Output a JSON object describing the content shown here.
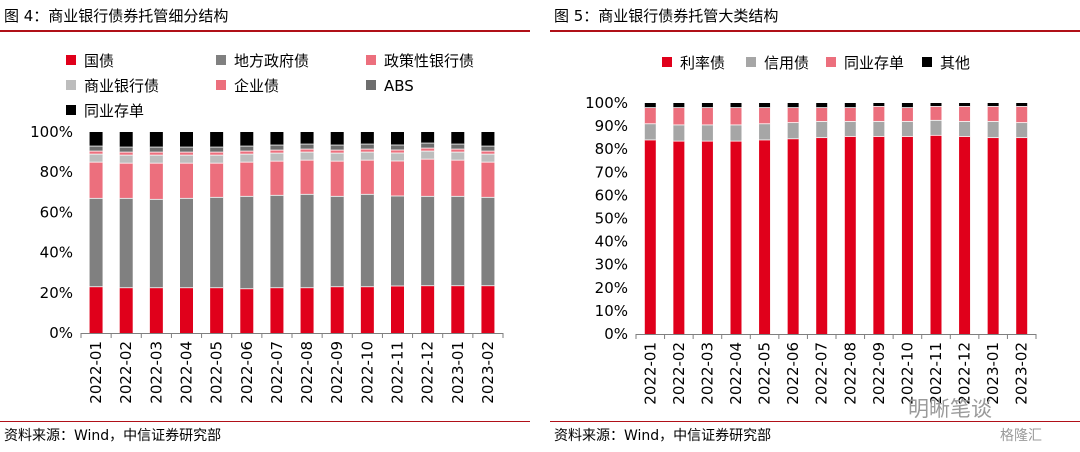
{
  "charts": [
    {
      "id": "left",
      "title": "图 4：商业银行债券托管细分结构",
      "source": "资料来源：Wind，中信证券研究部"
    },
    {
      "id": "right",
      "title": "图 5：商业银行债券托管大类结构",
      "source": "资料来源：Wind，中信证券研究部"
    }
  ],
  "watermark": "明晰笔谈",
  "watermark_small": "格隆汇",
  "chart_data": [
    {
      "type": "bar",
      "stacked": true,
      "categories": [
        "2022-01",
        "2022-02",
        "2022-03",
        "2022-04",
        "2022-05",
        "2022-06",
        "2022-07",
        "2022-08",
        "2022-09",
        "2022-10",
        "2022-11",
        "2022-12",
        "2023-01",
        "2023-02"
      ],
      "yticks": [
        "0%",
        "20%",
        "40%",
        "60%",
        "80%",
        "100%"
      ],
      "ylim": [
        0,
        100
      ],
      "legend_position": "top-left",
      "series": [
        {
          "name": "国债",
          "color": "#e0001b",
          "values": [
            23,
            22.5,
            22.5,
            22.5,
            22.5,
            22,
            22.5,
            22.5,
            23,
            23,
            23.5,
            23.5,
            23.5,
            23.5
          ]
        },
        {
          "name": "地方政府债",
          "color": "#808080",
          "values": [
            44,
            44.5,
            44,
            44.5,
            45,
            46,
            46,
            46.5,
            45,
            46,
            45,
            44.5,
            44.5,
            44
          ]
        },
        {
          "name": "政策性银行债",
          "color": "#ec6f7d",
          "values": [
            18,
            17.5,
            18,
            17.5,
            17,
            17,
            17,
            17,
            17.5,
            17,
            17.5,
            18.5,
            18,
            17.5
          ]
        },
        {
          "name": "商业银行债",
          "color": "#bdbdbd",
          "values": [
            4,
            4,
            4,
            4,
            4,
            4,
            4,
            4,
            4,
            4,
            4,
            4,
            4,
            4
          ]
        },
        {
          "name": "企业债",
          "color": "#ec6f7d",
          "values": [
            1.5,
            1.5,
            1.5,
            1.5,
            1.5,
            1.5,
            1.5,
            1.5,
            1.5,
            1.5,
            1.5,
            1.5,
            1.5,
            1.5
          ]
        },
        {
          "name": "ABS",
          "color": "#6e6e6e",
          "values": [
            2.5,
            2.5,
            2.5,
            2.5,
            2.5,
            2.5,
            2.5,
            2.5,
            2.5,
            2.5,
            2.5,
            2.5,
            2.5,
            2.5
          ]
        },
        {
          "name": "同业存单",
          "color": "#000000",
          "values": [
            7,
            7.5,
            7.5,
            7.5,
            7.5,
            7,
            6.5,
            6,
            6.5,
            6,
            6.5,
            5.5,
            6,
            7
          ]
        }
      ]
    },
    {
      "type": "bar",
      "stacked": true,
      "categories": [
        "2022-01",
        "2022-02",
        "2022-03",
        "2022-04",
        "2022-05",
        "2022-06",
        "2022-07",
        "2022-08",
        "2022-09",
        "2022-10",
        "2022-11",
        "2022-12",
        "2023-01",
        "2023-02"
      ],
      "yticks": [
        "0%",
        "10%",
        "20%",
        "30%",
        "40%",
        "50%",
        "60%",
        "70%",
        "80%",
        "90%",
        "100%"
      ],
      "ylim": [
        0,
        100
      ],
      "legend_position": "top-left",
      "series": [
        {
          "name": "利率债",
          "color": "#e0001b",
          "values": [
            84,
            83.5,
            83.5,
            83.5,
            84,
            84.5,
            85,
            85.5,
            85.5,
            85.5,
            86,
            85.5,
            85,
            85
          ]
        },
        {
          "name": "信用债",
          "color": "#a6a6a6",
          "values": [
            7,
            7,
            7,
            7,
            7,
            7,
            7,
            6.5,
            6.5,
            6.5,
            6.5,
            6.5,
            7,
            6.5
          ]
        },
        {
          "name": "同业存单",
          "color": "#ec6f7d",
          "values": [
            7,
            7.5,
            7.5,
            7.5,
            7,
            6.5,
            6,
            6,
            6.5,
            6,
            6,
            6.5,
            6.5,
            7
          ]
        },
        {
          "name": "其他",
          "color": "#000000",
          "values": [
            2,
            2,
            2,
            2,
            2,
            2,
            2,
            2,
            1.5,
            2,
            1.5,
            1.5,
            1.5,
            1.5
          ]
        }
      ]
    }
  ]
}
